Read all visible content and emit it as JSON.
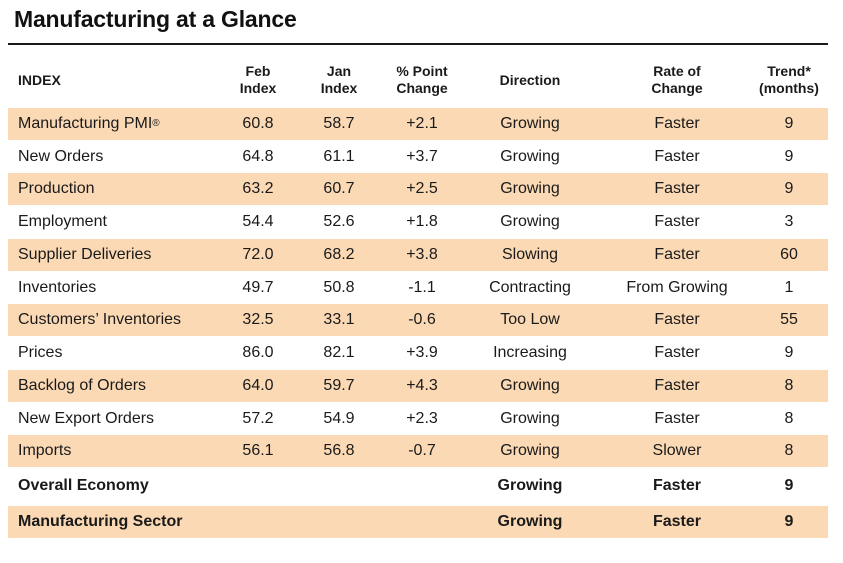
{
  "title": "Manufacturing at a Glance",
  "headers": [
    "INDEX",
    "Feb\nIndex",
    "Jan\nIndex",
    "% Point\nChange",
    "Direction",
    "Rate of\nChange",
    "Trend*\n(months)"
  ],
  "rows": [
    {
      "index": "Manufacturing PMI",
      "sup": "®",
      "feb": "60.8",
      "jan": "58.7",
      "change": "+2.1",
      "direction": "Growing",
      "rate": "Faster",
      "trend": "9"
    },
    {
      "index": "New Orders",
      "sup": "",
      "feb": "64.8",
      "jan": "61.1",
      "change": "+3.7",
      "direction": "Growing",
      "rate": "Faster",
      "trend": "9"
    },
    {
      "index": "Production",
      "sup": "",
      "feb": "63.2",
      "jan": "60.7",
      "change": "+2.5",
      "direction": "Growing",
      "rate": "Faster",
      "trend": "9"
    },
    {
      "index": "Employment",
      "sup": "",
      "feb": "54.4",
      "jan": "52.6",
      "change": "+1.8",
      "direction": "Growing",
      "rate": "Faster",
      "trend": "3"
    },
    {
      "index": "Supplier Deliveries",
      "sup": "",
      "feb": "72.0",
      "jan": "68.2",
      "change": "+3.8",
      "direction": "Slowing",
      "rate": "Faster",
      "trend": "60"
    },
    {
      "index": "Inventories",
      "sup": "",
      "feb": "49.7",
      "jan": "50.8",
      "change": "-1.1",
      "direction": "Contracting",
      "rate": "From Growing",
      "trend": "1"
    },
    {
      "index": "Customers’ Inventories",
      "sup": "",
      "feb": "32.5",
      "jan": "33.1",
      "change": "-0.6",
      "direction": "Too Low",
      "rate": "Faster",
      "trend": "55"
    },
    {
      "index": "Prices",
      "sup": "",
      "feb": "86.0",
      "jan": "82.1",
      "change": "+3.9",
      "direction": "Increasing",
      "rate": "Faster",
      "trend": "9"
    },
    {
      "index": "Backlog of Orders",
      "sup": "",
      "feb": "64.0",
      "jan": "59.7",
      "change": "+4.3",
      "direction": "Growing",
      "rate": "Faster",
      "trend": "8"
    },
    {
      "index": "New Export Orders",
      "sup": "",
      "feb": "57.2",
      "jan": "54.9",
      "change": "+2.3",
      "direction": "Growing",
      "rate": "Faster",
      "trend": "8"
    },
    {
      "index": "Imports",
      "sup": "",
      "feb": "56.1",
      "jan": "56.8",
      "change": "-0.7",
      "direction": "Growing",
      "rate": "Slower",
      "trend": "8"
    }
  ],
  "summary": [
    {
      "index": "Overall Economy",
      "direction": "Growing",
      "rate": "Faster",
      "trend": "9"
    },
    {
      "index": "Manufacturing Sector",
      "direction": "Growing",
      "rate": "Faster",
      "trend": "9"
    }
  ],
  "colors": {
    "shade": "#fbd9b4",
    "rule": "#1a1a1a"
  }
}
